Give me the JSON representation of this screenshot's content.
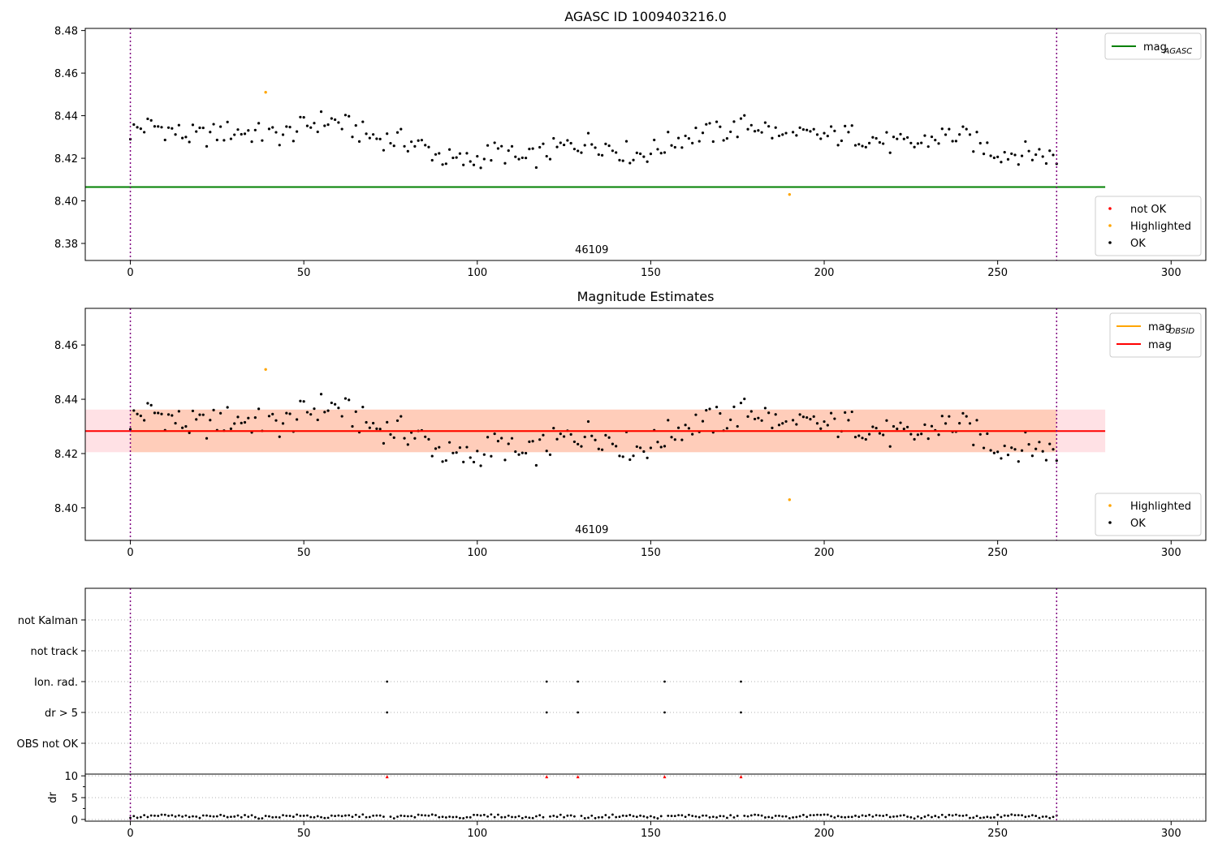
{
  "chart_data": [
    {
      "type": "scatter",
      "title": "AGASC ID 1009403216.0",
      "xlim": [
        -13,
        310
      ],
      "ylim": [
        8.372,
        8.481
      ],
      "xticks": [
        0,
        50,
        100,
        150,
        200,
        250,
        300
      ],
      "yticks": [
        8.38,
        8.4,
        8.42,
        8.44,
        8.46,
        8.48
      ],
      "ytick_labels": [
        "8.38",
        "8.40",
        "8.42",
        "8.44",
        "8.46",
        "8.48"
      ],
      "obsid_boundaries": [
        0,
        267
      ],
      "obsid_label": "46109",
      "obsid_label_x": 133,
      "reference_lines": [
        {
          "name": "mag_AGASC",
          "label_main": "mag",
          "label_sub": "AGASC",
          "value": 8.4065,
          "x_range": [
            -13,
            281
          ],
          "color": "#008000"
        }
      ],
      "legend_lines": [
        {
          "label_main": "mag",
          "label_sub": "AGASC",
          "color": "#008000"
        }
      ],
      "legend_markers": [
        {
          "label": "not OK",
          "color": "#ff0000"
        },
        {
          "label": "Highlighted",
          "color": "#ffa500"
        },
        {
          "label": "OK",
          "color": "#000000"
        }
      ],
      "highlighted_points": [
        {
          "x": 39,
          "y": 8.451
        },
        {
          "x": 190,
          "y": 8.403
        }
      ]
    },
    {
      "type": "scatter",
      "title": "Magnitude Estimates",
      "xlim": [
        -13,
        310
      ],
      "ylim": [
        8.388,
        8.4735
      ],
      "xticks": [
        0,
        50,
        100,
        150,
        200,
        250,
        300
      ],
      "yticks": [
        8.4,
        8.42,
        8.44,
        8.46
      ],
      "ytick_labels": [
        "8.40",
        "8.42",
        "8.44",
        "8.46"
      ],
      "obsid_boundaries": [
        0,
        267
      ],
      "obsid_label": "46109",
      "obsid_label_x": 133,
      "mean_mag": 8.4283,
      "band_range": [
        8.4205,
        8.4362
      ],
      "band_x_range": [
        -13,
        281
      ],
      "reference_lines": [
        {
          "name": "mag_OBSID",
          "label_main": "mag",
          "label_sub": "OBSID",
          "value": 8.4283,
          "x_range": [
            0,
            267
          ],
          "color": "#ffa500"
        },
        {
          "name": "mag",
          "label_main": "mag",
          "label_sub": "",
          "value": 8.4283,
          "x_range": [
            -13,
            281
          ],
          "color": "#ff0000"
        }
      ],
      "legend_lines": [
        {
          "label_main": "mag",
          "label_sub": "OBSID",
          "color": "#ffa500"
        },
        {
          "label_main": "mag",
          "label_sub": "",
          "color": "#ff0000"
        }
      ],
      "legend_markers": [
        {
          "label": "Highlighted",
          "color": "#ffa500"
        },
        {
          "label": "OK",
          "color": "#000000"
        }
      ],
      "highlighted_points": [
        {
          "x": 39,
          "y": 8.451
        },
        {
          "x": 190,
          "y": 8.403
        }
      ]
    },
    {
      "type": "scatter",
      "title": "",
      "xlim": [
        -13,
        310
      ],
      "flag_categories": [
        "OBS not OK",
        "dr > 5",
        "Ion. rad.",
        "not track",
        "not Kalman"
      ],
      "flag_points": [
        {
          "category": "dr > 5",
          "x": [
            74,
            120,
            129,
            154,
            176
          ]
        },
        {
          "category": "Ion. rad.",
          "x": [
            74,
            120,
            129,
            154,
            176
          ]
        }
      ],
      "obsid_boundaries": [
        0,
        267
      ]
    },
    {
      "type": "scatter",
      "title": "",
      "xlabel": "",
      "ylabel": "dr",
      "xlim": [
        -13,
        310
      ],
      "ylim": [
        -0.4,
        10.4
      ],
      "xticks": [
        0,
        50,
        100,
        150,
        200,
        250,
        300
      ],
      "yticks": [
        0,
        5,
        10
      ],
      "ytick_labels": [
        "0",
        "5",
        "10"
      ],
      "clipped_points": {
        "value": 10,
        "color": "#ff0000",
        "x": [
          74,
          120,
          129,
          154,
          176
        ]
      },
      "obsid_boundaries": [
        0,
        267
      ]
    }
  ]
}
